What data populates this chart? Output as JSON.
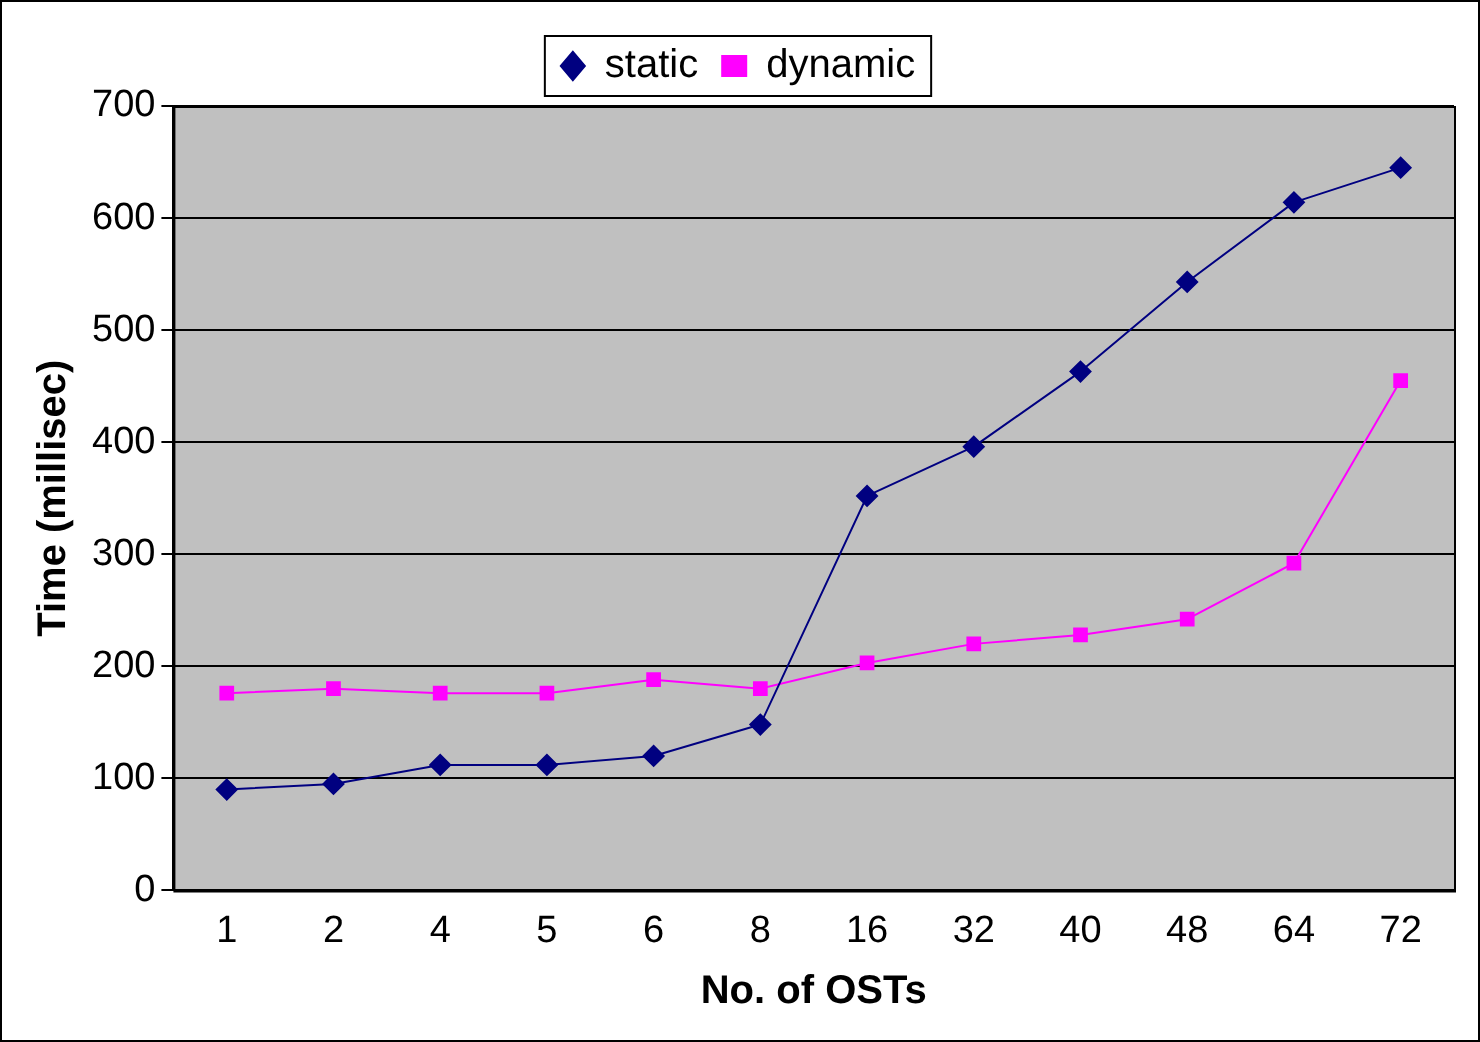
{
  "chart_data": {
    "type": "line",
    "xlabel": "No. of OSTs",
    "ylabel": "Time (millisec)",
    "categories": [
      "1",
      "2",
      "4",
      "5",
      "6",
      "8",
      "16",
      "32",
      "40",
      "48",
      "64",
      "72"
    ],
    "series": [
      {
        "name": "static",
        "color": "#000080",
        "marker": "diamond",
        "values": [
          90,
          95,
          112,
          112,
          120,
          148,
          352,
          396,
          463,
          543,
          614,
          645
        ]
      },
      {
        "name": "dynamic",
        "color": "#ff00ff",
        "marker": "square",
        "values": [
          176,
          180,
          176,
          176,
          188,
          180,
          203,
          220,
          228,
          242,
          292,
          455
        ]
      }
    ],
    "ylim": [
      0,
      700
    ],
    "yticks": [
      0,
      100,
      200,
      300,
      400,
      500,
      600,
      700
    ],
    "grid": "y",
    "legend": "top",
    "line_style": "solid"
  }
}
